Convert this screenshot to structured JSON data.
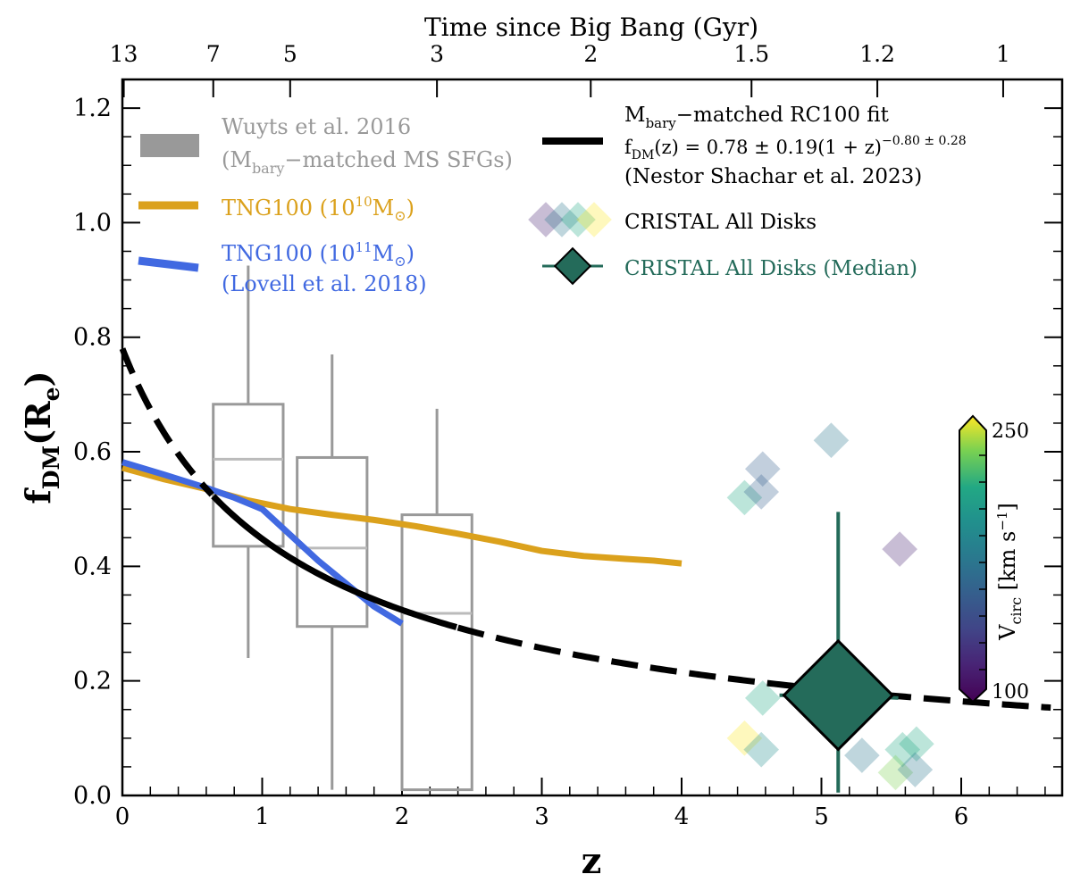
{
  "chart_data": {
    "type": "scatter",
    "title": "",
    "xlabel": "z",
    "ylabel": "f_DM(R_e)",
    "ylabel_main": "f",
    "ylabel_sub": "DM",
    "ylabel_rest": "(R",
    "ylabel_sub2": "e",
    "ylabel_end": ")",
    "xlim": [
      0,
      6.7
    ],
    "ylim": [
      0,
      1.25
    ],
    "x_ticks": [
      "0",
      "1",
      "2",
      "3",
      "4",
      "5",
      "6"
    ],
    "y_ticks": [
      "0.0",
      "0.2",
      "0.4",
      "0.6",
      "0.8",
      "1.0",
      "1.2"
    ],
    "top_axis": {
      "label": "Time since Big Bang (Gyr)",
      "ticks": [
        {
          "label": "13",
          "z": 0.01
        },
        {
          "label": "7",
          "z": 0.65
        },
        {
          "label": "5",
          "z": 1.2
        },
        {
          "label": "3",
          "z": 2.25
        },
        {
          "label": "2",
          "z": 3.35
        },
        {
          "label": "1.5",
          "z": 4.5
        },
        {
          "label": "1.2",
          "z": 5.4
        },
        {
          "label": "1",
          "z": 6.3
        }
      ]
    },
    "legend": {
      "wuyts_line1": "Wuyts et al. 2016",
      "wuyts_line2_pre": "(M",
      "wuyts_line2_sub": "bary",
      "wuyts_line2_post": "−matched MS SFGs)",
      "tng10_pre": "TNG100 (10",
      "tng10_sup": "10",
      "tng10_post": "M",
      "tng10_sun": "⊙",
      "tng10_close": ")",
      "tng11_pre": "TNG100 (10",
      "tng11_sup": "11",
      "tng11_post": "M",
      "tng11_sun": "⊙",
      "tng11_close": ")",
      "tng11_line2": "(Lovell et al. 2018)",
      "fit_line1_pre": "M",
      "fit_line1_sub": "bary",
      "fit_line1_post": "−matched RC100 fit",
      "fit_line2_pre": "f",
      "fit_line2_sub": "DM",
      "fit_line2_post": "(z) = 0.78 ± 0.19(1 + z)",
      "fit_line2_sup": "−0.80 ± 0.28",
      "fit_line3": "(Nestor Shachar et al. 2023)",
      "cristal_all": "CRISTAL All Disks",
      "cristal_median": "CRISTAL All Disks (Median)"
    },
    "colorbar": {
      "label_main": "V",
      "label_sub": "circ",
      "label_units": " [km s",
      "label_sup": "−1",
      "label_close": "]",
      "min_label": "100",
      "max_label": "250",
      "min": 100,
      "max": 250
    },
    "colors": {
      "tng10": "#DBA11C",
      "tng11": "#4169E1",
      "fit": "#000000",
      "wuyts": "#999999",
      "median": "#246B5A"
    },
    "series": [
      {
        "name": "TNG100 (10^10 Msun)",
        "x": [
          0,
          0.3,
          0.6,
          0.9,
          1.2,
          1.5,
          1.8,
          2.1,
          2.4,
          2.7,
          3.0,
          3.3,
          3.6,
          3.8,
          4.0
        ],
        "y": [
          0.572,
          0.552,
          0.535,
          0.515,
          0.5,
          0.49,
          0.481,
          0.47,
          0.457,
          0.443,
          0.427,
          0.418,
          0.413,
          0.41,
          0.405
        ]
      },
      {
        "name": "TNG100 (10^11 Msun)",
        "x": [
          0,
          0.3,
          0.6,
          0.8,
          1.0,
          1.2,
          1.4,
          1.6,
          1.8,
          2.0
        ],
        "y": [
          0.582,
          0.56,
          0.537,
          0.52,
          0.5,
          0.455,
          0.41,
          0.37,
          0.33,
          0.3
        ]
      }
    ],
    "fit": {
      "a": 0.78,
      "b": -0.8,
      "solid_range": [
        0.65,
        2.4
      ],
      "x_end": 6.65
    },
    "boxes": [
      {
        "x0": 0.65,
        "x1": 1.15,
        "q1": 0.435,
        "median": 0.587,
        "q3": 0.683,
        "wlo": 0.24,
        "whi": 0.925
      },
      {
        "x0": 1.25,
        "x1": 1.75,
        "q1": 0.295,
        "median": 0.432,
        "q3": 0.59,
        "wlo": 0.01,
        "whi": 0.77
      },
      {
        "x0": 2.0,
        "x1": 2.5,
        "q1": 0.01,
        "median": 0.318,
        "q3": 0.49,
        "wlo": 0.01,
        "whi": 0.675
      }
    ],
    "cristal_points": [
      {
        "z": 4.45,
        "f": 0.52,
        "v": 210
      },
      {
        "z": 4.58,
        "f": 0.57,
        "v": 150
      },
      {
        "z": 4.57,
        "f": 0.53,
        "v": 160
      },
      {
        "z": 5.07,
        "f": 0.62,
        "v": 175
      },
      {
        "z": 5.56,
        "f": 0.43,
        "v": 110
      },
      {
        "z": 4.58,
        "f": 0.17,
        "v": 215
      },
      {
        "z": 4.45,
        "f": 0.1,
        "v": 245
      },
      {
        "z": 4.57,
        "f": 0.08,
        "v": 190
      },
      {
        "z": 5.29,
        "f": 0.07,
        "v": 170
      },
      {
        "z": 5.58,
        "f": 0.08,
        "v": 215
      },
      {
        "z": 5.68,
        "f": 0.09,
        "v": 220
      },
      {
        "z": 5.53,
        "f": 0.04,
        "v": 240
      },
      {
        "z": 5.67,
        "f": 0.045,
        "v": 180
      }
    ],
    "median_point": {
      "z": 5.12,
      "f": 0.175,
      "f_lo": 0.005,
      "f_hi": 0.495,
      "z_lo": 4.7,
      "z_hi": 5.55,
      "f_at_z_hi": 0.17
    }
  }
}
